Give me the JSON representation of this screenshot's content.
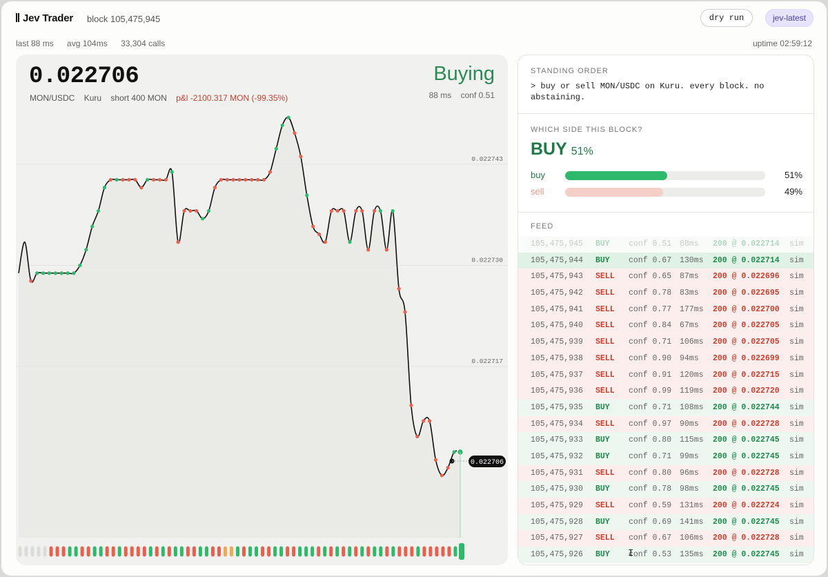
{
  "header": {
    "brand": "Jev Trader",
    "block": "block 105,475,945",
    "dry_run": "dry run",
    "model": "jev-latest",
    "stats": [
      "last 88 ms",
      "avg 104ms",
      "33,304 calls"
    ],
    "uptime": "uptime 02:59:12"
  },
  "ticker": {
    "price": "0.022706",
    "pair": "MON/USDC",
    "venue": "Kuru",
    "position": "short 400 MON",
    "pnl": "p&l -2100.317 MON (-99.35%)",
    "action": "Buying",
    "latency": "88 ms",
    "conf": "conf 0.51",
    "last_label": "0.022706"
  },
  "colors": {
    "buy": "#2fb96c",
    "sell": "#e8604e",
    "accent_green": "#2c8a57",
    "accent_red": "#c5402f",
    "line": "#111111"
  },
  "chart_data": {
    "type": "line",
    "title": "",
    "xlabel": "",
    "ylabel": "",
    "ylim": [
      0.022695,
      0.02275
    ],
    "y_ticks": [
      0.022743,
      0.02273,
      0.022717
    ],
    "y_tick_labels": [
      "0.022743",
      "0.022730",
      "0.022717"
    ],
    "series": [
      {
        "values": [
          0.022729,
          0.022733,
          0.022728,
          0.022729,
          0.022729,
          0.022729,
          0.022729,
          0.022729,
          0.022729,
          0.022729,
          0.02273,
          0.022732,
          0.022735,
          0.022737,
          0.02274,
          0.022741,
          0.022741,
          0.022741,
          0.022741,
          0.022741,
          0.02274,
          0.022741,
          0.022741,
          0.022741,
          0.022741,
          0.022742,
          0.022733,
          0.022737,
          0.022737,
          0.022737,
          0.022736,
          0.022737,
          0.02274,
          0.022741,
          0.022741,
          0.022741,
          0.022741,
          0.022741,
          0.022741,
          0.022741,
          0.022741,
          0.022742,
          0.022745,
          0.022748,
          0.022749,
          0.022747,
          0.022744,
          0.022739,
          0.022735,
          0.022734,
          0.022733,
          0.022737,
          0.022737,
          0.022737,
          0.022733,
          0.022737,
          0.022737,
          0.022732,
          0.022737,
          0.022737,
          0.022732,
          0.022737,
          0.022727,
          0.022724,
          0.022712,
          0.022708,
          0.02271,
          0.02271,
          0.022705,
          0.022703,
          0.022704,
          0.022706,
          0.022706
        ],
        "sides": [
          "",
          "",
          "S",
          "B",
          "B",
          "B",
          "B",
          "B",
          "B",
          "B",
          "B",
          "B",
          "B",
          "B",
          "B",
          "S",
          "B",
          "S",
          "S",
          "S",
          "S",
          "B",
          "S",
          "S",
          "S",
          "B",
          "S",
          "S",
          "S",
          "S",
          "B",
          "B",
          "S",
          "S",
          "S",
          "S",
          "S",
          "S",
          "S",
          "S",
          "S",
          "S",
          "B",
          "B",
          "B",
          "S",
          "S",
          "B",
          "S",
          "S",
          "S",
          "S",
          "S",
          "S",
          "B",
          "S",
          "S",
          "S",
          "S",
          "B",
          "S",
          "B",
          "S",
          "S",
          "S",
          "S",
          "S",
          "S",
          "S",
          "S",
          "S",
          "B",
          "B"
        ]
      }
    ],
    "bars": [
      "n",
      "n",
      "n",
      "n",
      "n",
      "s",
      "s",
      "s",
      "b",
      "b",
      "s",
      "s",
      "b",
      "b",
      "s",
      "s",
      "b",
      "s",
      "s",
      "s",
      "s",
      "b",
      "s",
      "b",
      "s",
      "b",
      "b",
      "s",
      "s",
      "b",
      "b",
      "s",
      "s",
      "o",
      "o",
      "b",
      "s",
      "b",
      "b",
      "s",
      "s",
      "b",
      "b",
      "s",
      "s",
      "b",
      "b",
      "b",
      "s",
      "b",
      "s",
      "b",
      "s",
      "b",
      "s",
      "b",
      "s",
      "b",
      "b",
      "s",
      "b",
      "s",
      "s",
      "s",
      "b",
      "s",
      "s",
      "s",
      "s",
      "s",
      "b",
      "b"
    ],
    "grid": true
  },
  "standing": {
    "label": "STANDING ORDER",
    "text": "> buy or sell MON/USDC on Kuru. every block. no abstaining."
  },
  "which": {
    "label": "WHICH SIDE THIS BLOCK?",
    "side": "BUY",
    "side_pct": "51%",
    "buy_label": "buy",
    "buy_pct": "51%",
    "buy_frac": 0.51,
    "sell_label": "sell",
    "sell_pct": "49%",
    "sell_frac": 0.49
  },
  "feed": {
    "label": "FEED",
    "rows": [
      {
        "block": "105,475,945",
        "side": "BUY",
        "conf": "conf 0.51",
        "ms": "88ms",
        "fill": "200 @ 0.022714",
        "mode": "sim"
      },
      {
        "block": "105,475,944",
        "side": "BUY",
        "conf": "conf 0.67",
        "ms": "130ms",
        "fill": "200 @ 0.022714",
        "mode": "sim"
      },
      {
        "block": "105,475,943",
        "side": "SELL",
        "conf": "conf 0.65",
        "ms": "87ms",
        "fill": "200 @ 0.022696",
        "mode": "sim"
      },
      {
        "block": "105,475,942",
        "side": "SELL",
        "conf": "conf 0.78",
        "ms": "83ms",
        "fill": "200 @ 0.022695",
        "mode": "sim"
      },
      {
        "block": "105,475,941",
        "side": "SELL",
        "conf": "conf 0.77",
        "ms": "177ms",
        "fill": "200 @ 0.022700",
        "mode": "sim"
      },
      {
        "block": "105,475,940",
        "side": "SELL",
        "conf": "conf 0.84",
        "ms": "67ms",
        "fill": "200 @ 0.022705",
        "mode": "sim"
      },
      {
        "block": "105,475,939",
        "side": "SELL",
        "conf": "conf 0.71",
        "ms": "106ms",
        "fill": "200 @ 0.022705",
        "mode": "sim"
      },
      {
        "block": "105,475,938",
        "side": "SELL",
        "conf": "conf 0.90",
        "ms": "94ms",
        "fill": "200 @ 0.022699",
        "mode": "sim"
      },
      {
        "block": "105,475,937",
        "side": "SELL",
        "conf": "conf 0.91",
        "ms": "120ms",
        "fill": "200 @ 0.022715",
        "mode": "sim"
      },
      {
        "block": "105,475,936",
        "side": "SELL",
        "conf": "conf 0.99",
        "ms": "119ms",
        "fill": "200 @ 0.022720",
        "mode": "sim"
      },
      {
        "block": "105,475,935",
        "side": "BUY",
        "conf": "conf 0.71",
        "ms": "108ms",
        "fill": "200 @ 0.022744",
        "mode": "sim"
      },
      {
        "block": "105,475,934",
        "side": "SELL",
        "conf": "conf 0.97",
        "ms": "90ms",
        "fill": "200 @ 0.022728",
        "mode": "sim"
      },
      {
        "block": "105,475,933",
        "side": "BUY",
        "conf": "conf 0.80",
        "ms": "115ms",
        "fill": "200 @ 0.022745",
        "mode": "sim"
      },
      {
        "block": "105,475,932",
        "side": "BUY",
        "conf": "conf 0.71",
        "ms": "99ms",
        "fill": "200 @ 0.022745",
        "mode": "sim"
      },
      {
        "block": "105,475,931",
        "side": "SELL",
        "conf": "conf 0.80",
        "ms": "96ms",
        "fill": "200 @ 0.022728",
        "mode": "sim"
      },
      {
        "block": "105,475,930",
        "side": "BUY",
        "conf": "conf 0.78",
        "ms": "98ms",
        "fill": "200 @ 0.022745",
        "mode": "sim"
      },
      {
        "block": "105,475,929",
        "side": "SELL",
        "conf": "conf 0.59",
        "ms": "131ms",
        "fill": "200 @ 0.022724",
        "mode": "sim"
      },
      {
        "block": "105,475,928",
        "side": "BUY",
        "conf": "conf 0.69",
        "ms": "141ms",
        "fill": "200 @ 0.022745",
        "mode": "sim"
      },
      {
        "block": "105,475,927",
        "side": "SELL",
        "conf": "conf 0.67",
        "ms": "106ms",
        "fill": "200 @ 0.022728",
        "mode": "sim"
      },
      {
        "block": "105,475,926",
        "side": "BUY",
        "conf": "conf 0.53",
        "ms": "135ms",
        "fill": "200 @ 0.022745",
        "mode": "sim"
      }
    ]
  },
  "cursor_icon": "text-cursor-icon"
}
